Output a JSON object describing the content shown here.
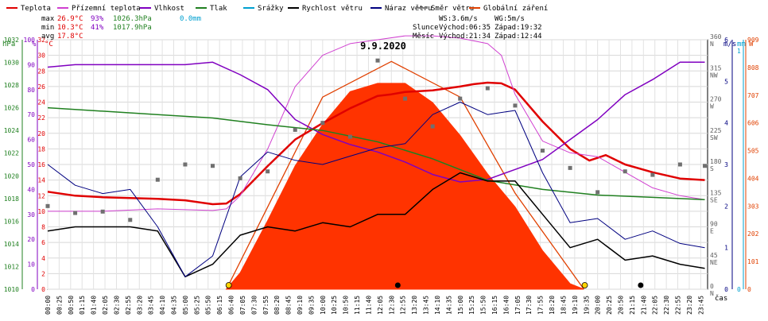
{
  "legend": [
    {
      "label": "Teplota",
      "color": "#e00000"
    },
    {
      "label": "Přízemní teplota",
      "color": "#d040d0"
    },
    {
      "label": "Vlhkost",
      "color": "#8000c0"
    },
    {
      "label": "Tlak",
      "color": "#208020"
    },
    {
      "label": "Srážky",
      "color": "#00a0d0"
    },
    {
      "label": "Rychlost větru",
      "color": "#000000"
    },
    {
      "label": "Náraz větru",
      "color": "#000080"
    },
    {
      "label": "Směr větru",
      "color": "#808080"
    },
    {
      "label": "Globální záření",
      "color": "#e04000"
    }
  ],
  "stats": {
    "max_label": "max",
    "max_temp": "26.9°C",
    "max_hum": "93%",
    "max_press": "1026.3hPa",
    "max_rain": "0.0mm",
    "min_label": "min",
    "min_temp": "10.3°C",
    "min_hum": "41%",
    "min_press": "1017.9hPa",
    "avg_label": "avg",
    "avg_temp": "17.8°C"
  },
  "wind_info": {
    "ws": "WS:3.6m/s",
    "wg": "WG:5m/s",
    "sun_label": "Slunce",
    "sun_rise": "Východ:06:35",
    "sun_set": "Západ:19:32",
    "moon_label": "Měsíc",
    "moon_rise": "Východ:21:34",
    "moon_set": "Západ:12:44"
  },
  "date": "9.9.2020",
  "units": {
    "hpa": "hPa",
    "pct": "%",
    "degc": "°C",
    "ms": "m/s",
    "mm": "mm",
    "w": "W",
    "cas": "čas"
  },
  "axes": {
    "pressure_ticks": [
      "1010",
      "1012",
      "1014",
      "1016",
      "1018",
      "1020",
      "1022",
      "1024",
      "1026",
      "1028",
      "1030",
      "1032"
    ],
    "humidity_ticks": [
      "0",
      "10",
      "20",
      "30",
      "40",
      "50",
      "60",
      "70",
      "80",
      "90",
      "100"
    ],
    "temp_ticks": [
      "0",
      "2",
      "4",
      "6",
      "8",
      "10",
      "12",
      "14",
      "16",
      "18",
      "20",
      "22",
      "24",
      "26",
      "28",
      "30",
      "32"
    ],
    "dir_ticks": [
      {
        "deg": "0",
        "name": "N"
      },
      {
        "deg": "45",
        "name": "NE"
      },
      {
        "deg": "90",
        "name": "E"
      },
      {
        "deg": "135",
        "name": "SE"
      },
      {
        "deg": "180",
        "name": "S"
      },
      {
        "deg": "225",
        "name": "SW"
      },
      {
        "deg": "270",
        "name": "W"
      },
      {
        "deg": "315",
        "name": "NW"
      },
      {
        "deg": "360",
        "name": "N"
      }
    ],
    "wind_ticks": [
      "0",
      "1",
      "2",
      "3",
      "4",
      "5",
      "6"
    ],
    "rain_ticks": [
      "0",
      "1"
    ],
    "rad_ticks": [
      "0",
      "101",
      "202",
      "303",
      "404",
      "505",
      "606",
      "707",
      "808",
      "909"
    ],
    "x_ticks": [
      "00:00",
      "00:25",
      "00:50",
      "01:15",
      "01:40",
      "02:05",
      "02:30",
      "02:55",
      "03:20",
      "03:45",
      "04:10",
      "04:35",
      "05:00",
      "05:25",
      "05:50",
      "06:15",
      "06:40",
      "07:05",
      "07:30",
      "07:55",
      "08:20",
      "08:45",
      "09:10",
      "09:35",
      "10:00",
      "10:25",
      "10:50",
      "11:15",
      "11:40",
      "12:05",
      "12:30",
      "12:55",
      "13:20",
      "13:45",
      "14:10",
      "14:35",
      "15:00",
      "15:25",
      "15:50",
      "16:15",
      "16:40",
      "17:05",
      "17:30",
      "17:55",
      "18:20",
      "18:45",
      "19:10",
      "19:35",
      "20:00",
      "20:25",
      "20:50",
      "21:15",
      "21:40",
      "22:05",
      "22:30",
      "22:55",
      "23:20",
      "23:45"
    ]
  },
  "chart_data": {
    "type": "line",
    "title": "9.9.2020",
    "x_unit": "hours (0-24)",
    "ranges": {
      "temp_c": [
        0,
        32
      ],
      "humidity_pct": [
        0,
        100
      ],
      "pressure_hpa": [
        1010,
        1032
      ],
      "wind_ms": [
        0,
        6
      ],
      "radiation_w": [
        0,
        909
      ],
      "direction_deg": [
        0,
        360
      ]
    },
    "series": [
      {
        "name": "Teplota",
        "unit": "°C",
        "x": [
          0,
          1,
          2,
          3,
          4,
          5,
          6,
          6.5,
          7,
          8,
          9,
          10,
          11,
          12,
          12.5,
          13,
          14,
          15,
          15.5,
          16,
          16.5,
          17,
          18,
          19,
          19.7,
          20.3,
          21,
          22,
          23,
          23.9
        ],
        "values": [
          12.5,
          12,
          11.8,
          11.7,
          11.6,
          11.4,
          10.9,
          11,
          12.2,
          15.8,
          19.2,
          21.3,
          23.2,
          24.8,
          25,
          25.3,
          25.5,
          26,
          26.3,
          26.5,
          26.4,
          25.6,
          21.5,
          18,
          16.5,
          17.2,
          16,
          15,
          14.2,
          14
        ]
      },
      {
        "name": "Přízemní teplota",
        "unit": "°C",
        "x": [
          0,
          2,
          4,
          6,
          6.5,
          7,
          8,
          9,
          10,
          11,
          12,
          13,
          14,
          15,
          16,
          16.5,
          17,
          18,
          19,
          20,
          21,
          22,
          23,
          23.9
        ],
        "values": [
          10,
          10,
          10.3,
          10.1,
          10.3,
          12,
          18,
          26,
          30,
          31.5,
          32,
          32.5,
          32.5,
          32.2,
          31.5,
          30,
          25,
          19,
          17.5,
          17,
          15,
          13,
          12,
          11.5
        ]
      },
      {
        "name": "Vlhkost",
        "unit": "%",
        "x": [
          0,
          1,
          2,
          3,
          4,
          5,
          6,
          7,
          8,
          9,
          10,
          11,
          12,
          13,
          14,
          15,
          16,
          17,
          18,
          19,
          20,
          21,
          22,
          23,
          23.9
        ],
        "values": [
          89,
          90,
          90,
          90,
          90,
          90,
          91,
          86,
          80,
          68,
          62,
          58,
          55,
          51,
          46,
          43,
          44,
          48,
          52,
          60,
          68,
          78,
          84,
          91,
          91
        ]
      },
      {
        "name": "Tlak",
        "unit": "hPa",
        "x": [
          0,
          2,
          4,
          6,
          8,
          10,
          12,
          14,
          16,
          18,
          20,
          22,
          23.9
        ],
        "values": [
          1026,
          1025.7,
          1025.4,
          1025.1,
          1024.5,
          1024,
          1023,
          1021.5,
          1019.6,
          1018.8,
          1018.3,
          1018.1,
          1017.9
        ]
      },
      {
        "name": "Rychlost větru",
        "unit": "m/s",
        "x": [
          0,
          1,
          2,
          3,
          4,
          5,
          6,
          7,
          8,
          9,
          10,
          11,
          12,
          13,
          14,
          15,
          16,
          17,
          18,
          19,
          20,
          21,
          22,
          23,
          23.9
        ],
        "values": [
          1.4,
          1.5,
          1.5,
          1.5,
          1.4,
          0.3,
          0.6,
          1.3,
          1.5,
          1.4,
          1.6,
          1.5,
          1.8,
          1.8,
          2.4,
          2.8,
          2.6,
          2.6,
          1.8,
          1,
          1.2,
          0.7,
          0.8,
          0.6,
          0.5
        ]
      },
      {
        "name": "Náraz větru",
        "unit": "m/s",
        "x": [
          0,
          1,
          2,
          3,
          4,
          5,
          6,
          7,
          8,
          9,
          10,
          11,
          12,
          13,
          14,
          15,
          16,
          17,
          18,
          19,
          20,
          21,
          22,
          23,
          23.9
        ],
        "values": [
          3,
          2.5,
          2.3,
          2.4,
          1.5,
          0.3,
          0.8,
          2.7,
          3.3,
          3.1,
          3,
          3.2,
          3.4,
          3.5,
          4.2,
          4.5,
          4.2,
          4.3,
          2.8,
          1.6,
          1.7,
          1.2,
          1.4,
          1.1,
          1
        ]
      },
      {
        "name": "Globální záření",
        "unit": "W",
        "x": [
          6.5,
          7,
          8,
          9,
          10,
          11,
          12,
          13,
          14,
          15,
          16,
          17,
          18,
          19,
          19.5
        ],
        "values": [
          0,
          60,
          250,
          450,
          600,
          720,
          750,
          750,
          680,
          560,
          420,
          300,
          140,
          20,
          0
        ]
      }
    ],
    "theoretical_radiation": {
      "x": [
        6.5,
        8,
        10,
        12.5,
        15,
        17,
        19.5
      ],
      "values": [
        0,
        300,
        700,
        830,
        700,
        350,
        0
      ]
    },
    "wind_direction_points": {
      "x": [
        0,
        1,
        2,
        3,
        4,
        5,
        6,
        7,
        8,
        9,
        10,
        11,
        12,
        13,
        14,
        15,
        16,
        17,
        18,
        19,
        20,
        21,
        22,
        23,
        23.9
      ],
      "values": [
        120,
        110,
        112,
        100,
        158,
        180,
        178,
        160,
        170,
        230,
        240,
        220,
        330,
        275,
        235,
        275,
        290,
        265,
        200,
        175,
        140,
        170,
        165,
        180,
        178
      ]
    },
    "sun_events": {
      "sunrise": 6.583,
      "sunset": 19.533,
      "moonrise": 21.567,
      "moonset": 12.733
    }
  }
}
